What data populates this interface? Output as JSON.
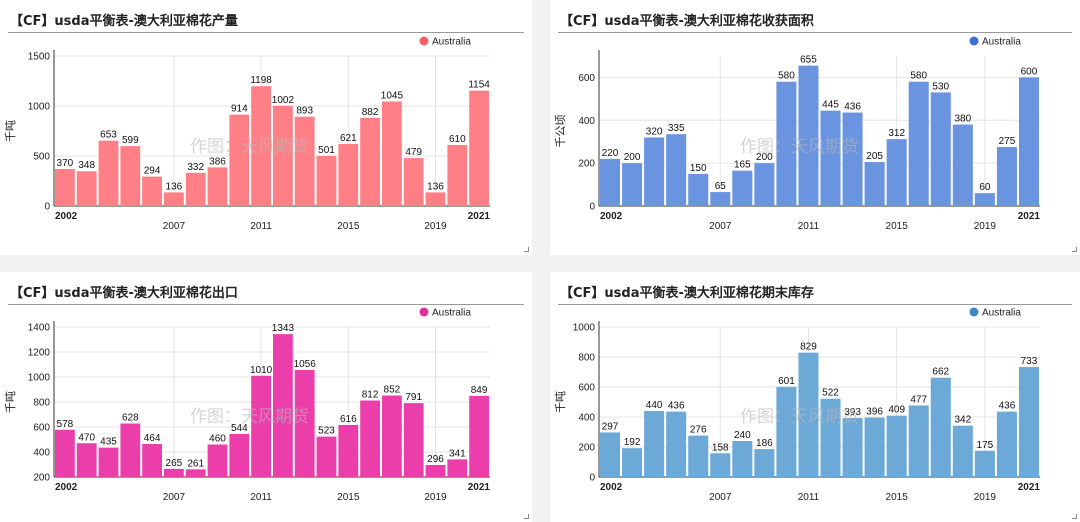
{
  "watermark": "作图：天风期货",
  "charts": [
    {
      "title": "【CF】usda平衡表-澳大利亚棉花产量",
      "color": "#ff7f87",
      "legend_color": "#f25e65",
      "legend": "Australia",
      "ylabel": "千吨",
      "ylim": [
        0,
        1500
      ],
      "yticks": [
        0,
        500,
        1000,
        1500
      ],
      "bold_xticks": [
        "2002",
        "2021"
      ],
      "xticks": [
        "2007",
        "2011",
        "2015",
        "2019"
      ]
    },
    {
      "title": "【CF】usda平衡表-澳大利亚棉花收获面积",
      "color": "#6a93e0",
      "legend_color": "#3d6fd6",
      "legend": "Australia",
      "ylabel": "千公顷",
      "ylim": [
        0,
        700
      ],
      "yticks": [
        0,
        200,
        400,
        600
      ],
      "bold_xticks": [
        "2002",
        "2021"
      ],
      "xticks": [
        "2007",
        "2011",
        "2015",
        "2019"
      ]
    },
    {
      "title": "【CF】usda平衡表-澳大利亚棉花出口",
      "color": "#ec3eab",
      "legend_color": "#e0309f",
      "legend": "Australia",
      "ylabel": "千吨",
      "ylim": [
        200,
        1400
      ],
      "yticks": [
        200,
        400,
        600,
        800,
        1000,
        1200,
        1400
      ],
      "bold_xticks": [
        "2002",
        "2021"
      ],
      "xticks": [
        "2007",
        "2011",
        "2015",
        "2019"
      ]
    },
    {
      "title": "【CF】usda平衡表-澳大利亚棉花期末库存",
      "color": "#6da9d6",
      "legend_color": "#3f87c6",
      "legend": "Australia",
      "ylabel": "千吨",
      "ylim": [
        0,
        1000
      ],
      "yticks": [
        0,
        200,
        400,
        600,
        800,
        1000
      ],
      "bold_xticks": [
        "2002",
        "2021"
      ],
      "xticks": [
        "2007",
        "2011",
        "2015",
        "2019"
      ]
    }
  ],
  "chart_data": [
    {
      "type": "bar",
      "title": "【CF】usda平衡表-澳大利亚棉花产量",
      "ylabel": "千吨",
      "ylim": [
        0,
        1500
      ],
      "x": [
        2002,
        2003,
        2004,
        2005,
        2006,
        2007,
        2008,
        2009,
        2010,
        2011,
        2012,
        2013,
        2014,
        2015,
        2016,
        2017,
        2018,
        2019,
        2020,
        2021
      ],
      "series": [
        {
          "name": "Australia",
          "values": [
            370,
            348,
            653,
            599,
            294,
            136,
            332,
            386,
            914,
            1198,
            1002,
            893,
            501,
            621,
            882,
            1045,
            479,
            136,
            610,
            1154
          ]
        }
      ]
    },
    {
      "type": "bar",
      "title": "【CF】usda平衡表-澳大利亚棉花收获面积",
      "ylabel": "千公顷",
      "ylim": [
        0,
        700
      ],
      "x": [
        2002,
        2003,
        2004,
        2005,
        2006,
        2007,
        2008,
        2009,
        2010,
        2011,
        2012,
        2013,
        2014,
        2015,
        2016,
        2017,
        2018,
        2019,
        2020,
        2021
      ],
      "series": [
        {
          "name": "Australia",
          "values": [
            220,
            200,
            320,
            335,
            150,
            65,
            165,
            200,
            580,
            655,
            445,
            436,
            205,
            312,
            580,
            530,
            380,
            60,
            275,
            600
          ]
        }
      ]
    },
    {
      "type": "bar",
      "title": "【CF】usda平衡表-澳大利亚棉花出口",
      "ylabel": "千吨",
      "ylim": [
        200,
        1400
      ],
      "x": [
        2002,
        2003,
        2004,
        2005,
        2006,
        2007,
        2008,
        2009,
        2010,
        2011,
        2012,
        2013,
        2014,
        2015,
        2016,
        2017,
        2018,
        2019,
        2020,
        2021
      ],
      "series": [
        {
          "name": "Australia",
          "values": [
            578,
            470,
            435,
            628,
            464,
            265,
            261,
            460,
            544,
            1010,
            1343,
            1056,
            523,
            616,
            812,
            852,
            791,
            296,
            341,
            849
          ]
        }
      ]
    },
    {
      "type": "bar",
      "title": "【CF】usda平衡表-澳大利亚棉花期末库存",
      "ylabel": "千吨",
      "ylim": [
        0,
        1000
      ],
      "x": [
        2002,
        2003,
        2004,
        2005,
        2006,
        2007,
        2008,
        2009,
        2010,
        2011,
        2012,
        2013,
        2014,
        2015,
        2016,
        2017,
        2018,
        2019,
        2020,
        2021
      ],
      "series": [
        {
          "name": "Australia",
          "values": [
            297,
            192,
            440,
            436,
            276,
            158,
            240,
            186,
            601,
            829,
            522,
            393,
            396,
            409,
            477,
            662,
            342,
            175,
            436,
            733
          ]
        }
      ]
    }
  ]
}
